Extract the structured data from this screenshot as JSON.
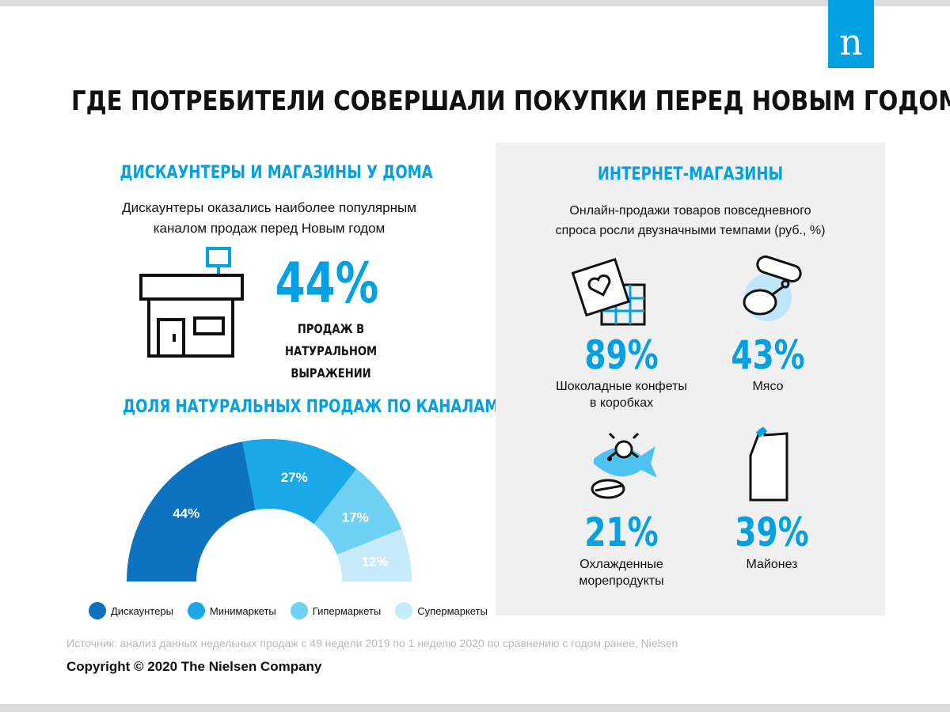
{
  "brand": {
    "logo_letter": "n",
    "accent": "#00a0e3"
  },
  "title": "ГДЕ ПОТРЕБИТЕЛИ СОВЕРШАЛИ ПОКУПКИ ПЕРЕД НОВЫМ ГОДОМ?",
  "left": {
    "heading": "ДИСКАУНТЕРЫ И МАГАЗИНЫ У ДОМА",
    "text_line1": "Дискаунтеры оказались наиболее популярным",
    "text_line2": "каналом продаж перед Новым годом",
    "store_icon": "store-icon",
    "big_pct": "44%",
    "caption_line1": "ПРОДАЖ В НАТУРАЛЬНОМ",
    "caption_line2": "ВЫРАЖЕНИИ"
  },
  "chart_heading": "ДОЛЯ НАТУРАЛЬНЫХ ПРОДАЖ ПО КАНАЛАМ, %",
  "chart_data": {
    "type": "pie",
    "style": "half-donut",
    "categories": [
      "Дискаунтеры",
      "Минимаркеты",
      "Гипермаркеты",
      "Супермаркеты"
    ],
    "values": [
      44,
      27,
      17,
      12
    ],
    "labels": [
      "44%",
      "27%",
      "17%",
      "12%"
    ],
    "colors": [
      "#0d72bf",
      "#1aa8e8",
      "#6fd2f5",
      "#c7ebfb"
    ],
    "legend": "bottom"
  },
  "right": {
    "heading": "ИНТЕРНЕТ-МАГАЗИНЫ",
    "text_line1": "Онлайн-продажи товаров повседневного",
    "text_line2": "спроса росли двузначными темпами (руб., %)",
    "items": [
      {
        "pct": "89%",
        "label1": "Шоколадные конфеты",
        "label2": "в коробках",
        "icon": "chocolate-box-icon"
      },
      {
        "pct": "43%",
        "label1": "Мясо",
        "label2": "",
        "icon": "meat-icon"
      },
      {
        "pct": "21%",
        "label1": "Охлажденные",
        "label2": "морепродукты",
        "icon": "seafood-icon"
      },
      {
        "pct": "39%",
        "label1": "Майонез",
        "label2": "",
        "icon": "mayonnaise-icon"
      }
    ]
  },
  "source": "Источник: анализ данных недельных продаж с 49 недели 2019 по 1 неделю 2020 по сравнению с годом ранее, Nielsen",
  "copyright": "Copyright © 2020 The Nielsen Company"
}
